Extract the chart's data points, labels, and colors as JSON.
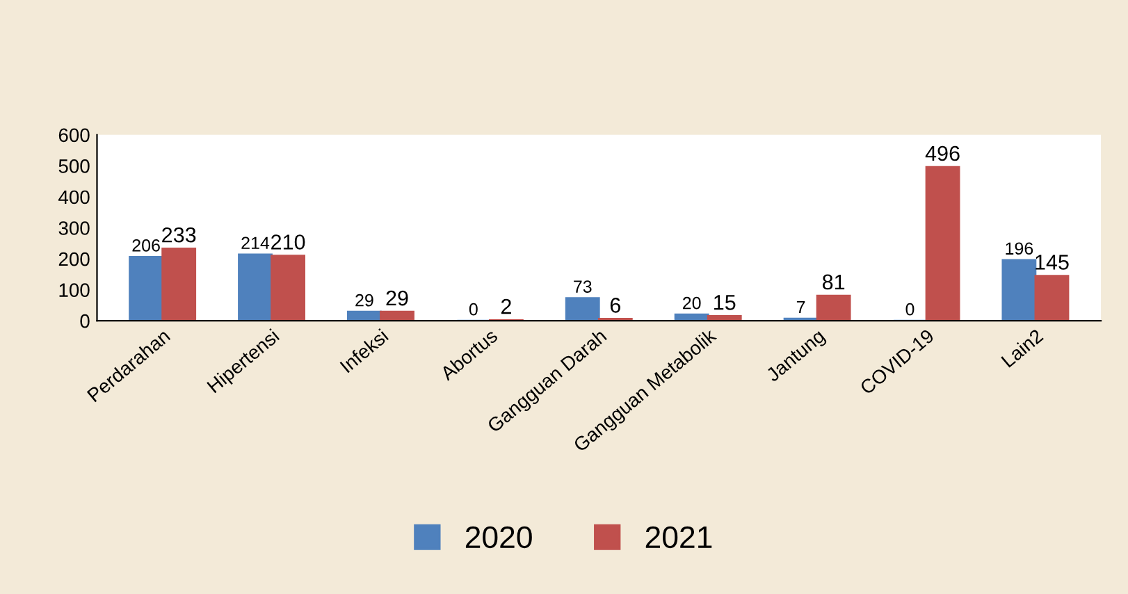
{
  "chart_data": {
    "type": "bar",
    "categories": [
      "Perdarahan",
      "Hipertensi",
      "Infeksi",
      "Abortus",
      "Gangguan Darah",
      "Gangguan Metabolik",
      "Jantung",
      "COVID-19",
      "Lain2"
    ],
    "series": [
      {
        "name": "2020",
        "color": "#4f81bd",
        "values": [
          206,
          214,
          29,
          0,
          73,
          20,
          7,
          0,
          196
        ]
      },
      {
        "name": "2021",
        "color": "#c0504d",
        "values": [
          233,
          210,
          29,
          2,
          6,
          15,
          81,
          496,
          145
        ]
      }
    ],
    "ylim": [
      0,
      600
    ],
    "yticks": [
      0,
      100,
      200,
      300,
      400,
      500,
      600
    ],
    "data_labels": true,
    "legend": "bottom",
    "grid": false
  }
}
